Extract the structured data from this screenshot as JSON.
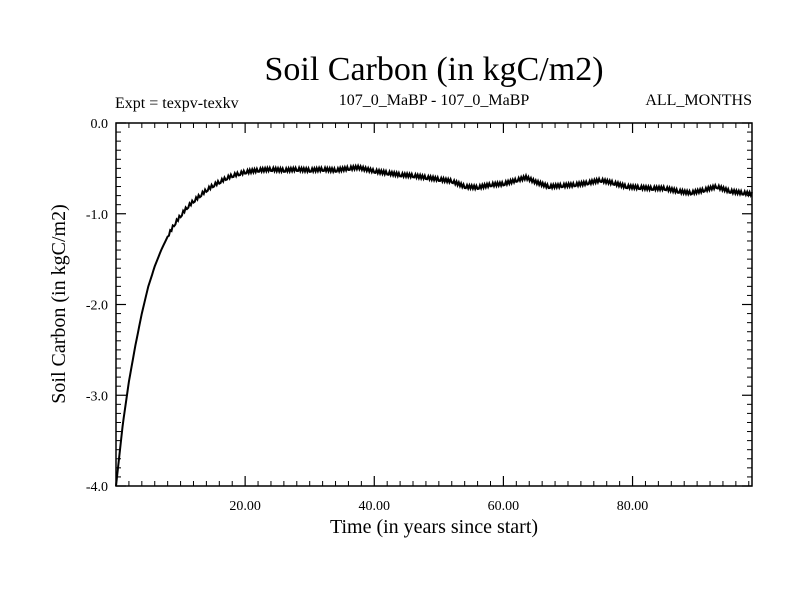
{
  "chart_data": {
    "type": "line",
    "title": "Soil Carbon (in kgC/m2)",
    "subtitle_left": "Expt = texpv-texkv",
    "subtitle_center": "107_0_MaBP - 107_0_MaBP",
    "subtitle_right": "ALL_MONTHS",
    "xlabel": "Time (in years since start)",
    "ylabel": "Soil Carbon (in kgC/m2)",
    "xlim": [
      0,
      98.5
    ],
    "ylim": [
      -4.0,
      0.0
    ],
    "xticks": [
      20,
      40,
      60,
      80
    ],
    "xtick_labels": [
      "20.00",
      "40.00",
      "60.00",
      "80.00"
    ],
    "yticks": [
      0.0,
      -1.0,
      -2.0,
      -3.0,
      -4.0
    ],
    "ytick_labels": [
      "0.0",
      "-1.0",
      "-2.0",
      "-3.0",
      "-4.0"
    ],
    "grid": false,
    "series": [
      {
        "name": "Soil Carbon",
        "color": "#000000",
        "x": [
          0,
          1,
          2,
          3,
          4,
          5,
          6,
          7,
          8,
          9,
          10,
          11,
          12,
          13,
          14,
          15,
          16,
          17,
          18,
          19,
          20,
          22,
          24,
          26,
          28,
          30,
          32,
          34,
          36,
          37.5,
          40,
          42,
          44,
          46,
          48,
          50,
          52,
          54,
          56,
          58,
          60,
          62,
          63.5,
          65,
          67,
          69,
          71,
          73,
          75,
          77,
          79,
          81,
          83,
          85,
          87,
          89,
          91,
          93,
          95,
          97,
          98.5
        ],
        "y": [
          -4.0,
          -3.35,
          -2.85,
          -2.45,
          -2.1,
          -1.8,
          -1.58,
          -1.4,
          -1.25,
          -1.12,
          -1.02,
          -0.93,
          -0.86,
          -0.8,
          -0.74,
          -0.69,
          -0.65,
          -0.61,
          -0.58,
          -0.56,
          -0.54,
          -0.52,
          -0.51,
          -0.52,
          -0.51,
          -0.52,
          -0.51,
          -0.52,
          -0.5,
          -0.49,
          -0.53,
          -0.55,
          -0.57,
          -0.58,
          -0.6,
          -0.62,
          -0.64,
          -0.7,
          -0.71,
          -0.68,
          -0.67,
          -0.63,
          -0.6,
          -0.65,
          -0.7,
          -0.69,
          -0.68,
          -0.66,
          -0.63,
          -0.66,
          -0.7,
          -0.71,
          -0.72,
          -0.72,
          -0.75,
          -0.77,
          -0.74,
          -0.7,
          -0.75,
          -0.77,
          -0.78
        ]
      }
    ]
  }
}
